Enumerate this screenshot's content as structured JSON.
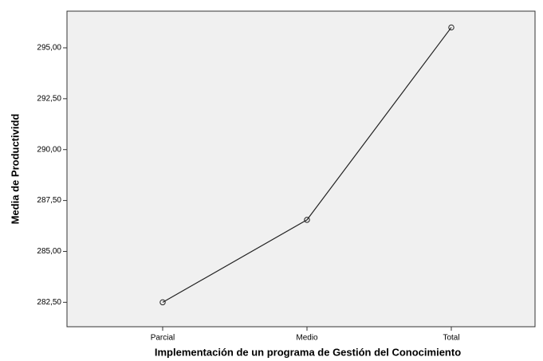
{
  "chart_data": {
    "type": "line",
    "xlabel": "Implementación de un programa de Gestión del Conocimiento",
    "ylabel": "Media de Productividd",
    "categories": [
      "Parcial",
      "Medio",
      "Total"
    ],
    "values": [
      282.5,
      286.55,
      296.0
    ],
    "color": "#222222",
    "ylim": [
      281.3,
      296.8
    ],
    "yticks": [
      {
        "value": 282.5,
        "label": "282,50"
      },
      {
        "value": 285,
        "label": "285,00"
      },
      {
        "value": 287.5,
        "label": "287,50"
      },
      {
        "value": 290,
        "label": "290,00"
      },
      {
        "value": 292.5,
        "label": "292,50"
      },
      {
        "value": 295,
        "label": "295,00"
      }
    ]
  }
}
